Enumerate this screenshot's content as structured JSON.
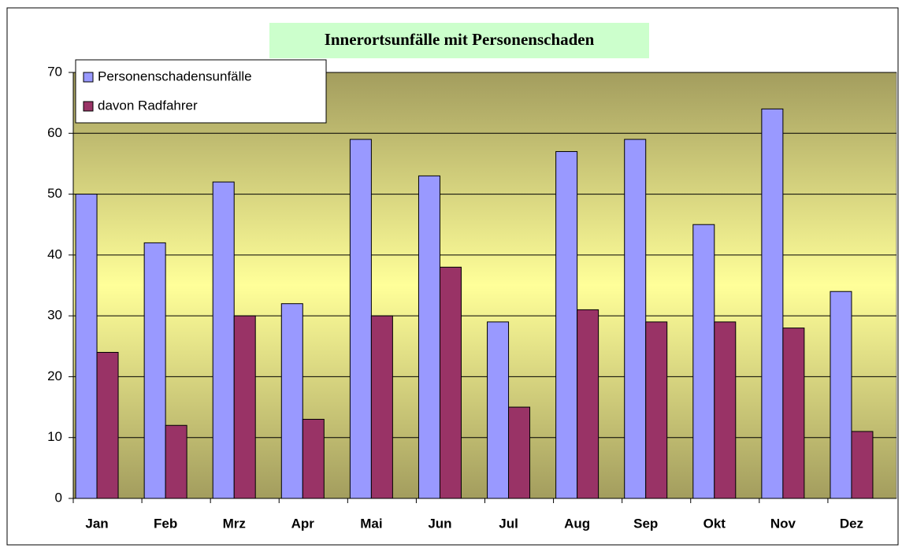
{
  "chart_data": {
    "type": "bar",
    "title": "Innerortsunfälle mit Personenschaden",
    "categories": [
      "Jan",
      "Feb",
      "Mrz",
      "Apr",
      "Mai",
      "Jun",
      "Jul",
      "Aug",
      "Sep",
      "Okt",
      "Nov",
      "Dez"
    ],
    "series": [
      {
        "name": "Personenschadensunfälle",
        "color": "#9999ff",
        "values": [
          50,
          42,
          52,
          32,
          59,
          53,
          29,
          57,
          59,
          45,
          64,
          34
        ]
      },
      {
        "name": "davon Radfahrer",
        "color": "#993366",
        "values": [
          24,
          12,
          30,
          13,
          30,
          38,
          15,
          31,
          29,
          29,
          28,
          11
        ]
      }
    ],
    "ylim": [
      0,
      70
    ],
    "yticks": [
      0,
      10,
      20,
      30,
      40,
      50,
      60,
      70
    ],
    "grid": true,
    "legend": "top-left"
  }
}
